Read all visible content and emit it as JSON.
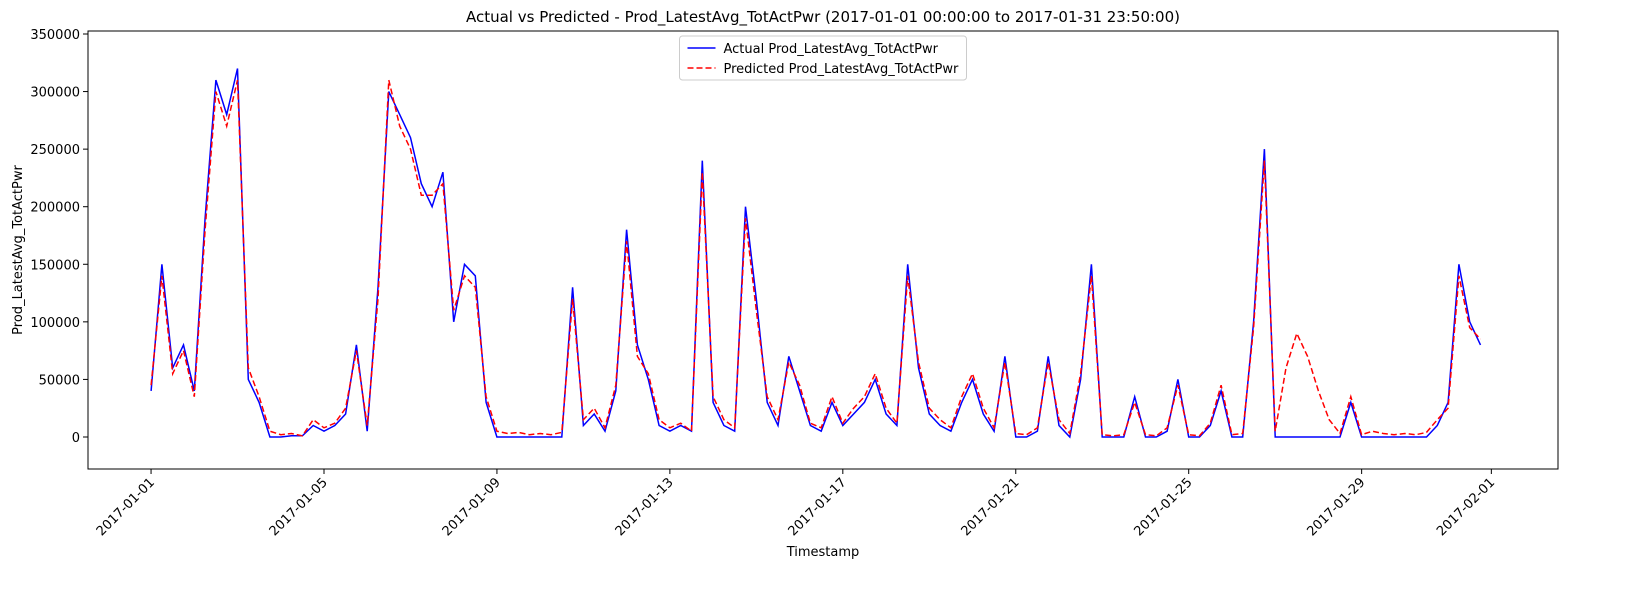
{
  "chart_data": {
    "type": "line",
    "title": "Actual vs Predicted - Prod_LatestAvg_TotActPwr (2017-01-01 00:00:00 to 2017-01-31 23:50:00)",
    "x_label": "Timestamp",
    "y_label": "Prod_LatestAvg_TotActPwr",
    "legend": "upper center",
    "xlim": [
      "2016-12-30 13:00:00",
      "2017-02-02 13:00:00"
    ],
    "xticks": [
      "2017-01-01",
      "2017-01-05",
      "2017-01-09",
      "2017-01-13",
      "2017-01-17",
      "2017-01-21",
      "2017-01-25",
      "2017-01-29",
      "2017-02-01"
    ],
    "ylim": [
      -27800,
      352600
    ],
    "yticks": [
      0,
      50000,
      100000,
      150000,
      200000,
      250000,
      300000,
      350000
    ],
    "x": [
      "2017-01-01 00:00:00",
      "2017-01-01 06:00:00",
      "2017-01-01 12:00:00",
      "2017-01-01 18:00:00",
      "2017-01-02 00:00:00",
      "2017-01-02 06:00:00",
      "2017-01-02 12:00:00",
      "2017-01-02 18:00:00",
      "2017-01-03 00:00:00",
      "2017-01-03 06:00:00",
      "2017-01-03 12:00:00",
      "2017-01-03 18:00:00",
      "2017-01-04 00:00:00",
      "2017-01-04 06:00:00",
      "2017-01-04 12:00:00",
      "2017-01-04 18:00:00",
      "2017-01-05 00:00:00",
      "2017-01-05 06:00:00",
      "2017-01-05 12:00:00",
      "2017-01-05 18:00:00",
      "2017-01-06 00:00:00",
      "2017-01-06 06:00:00",
      "2017-01-06 12:00:00",
      "2017-01-06 18:00:00",
      "2017-01-07 00:00:00",
      "2017-01-07 06:00:00",
      "2017-01-07 12:00:00",
      "2017-01-07 18:00:00",
      "2017-01-08 00:00:00",
      "2017-01-08 06:00:00",
      "2017-01-08 12:00:00",
      "2017-01-08 18:00:00",
      "2017-01-09 00:00:00",
      "2017-01-09 06:00:00",
      "2017-01-09 12:00:00",
      "2017-01-09 18:00:00",
      "2017-01-10 00:00:00",
      "2017-01-10 06:00:00",
      "2017-01-10 12:00:00",
      "2017-01-10 18:00:00",
      "2017-01-11 00:00:00",
      "2017-01-11 06:00:00",
      "2017-01-11 12:00:00",
      "2017-01-11 18:00:00",
      "2017-01-12 00:00:00",
      "2017-01-12 06:00:00",
      "2017-01-12 12:00:00",
      "2017-01-12 18:00:00",
      "2017-01-13 00:00:00",
      "2017-01-13 06:00:00",
      "2017-01-13 12:00:00",
      "2017-01-13 18:00:00",
      "2017-01-14 00:00:00",
      "2017-01-14 06:00:00",
      "2017-01-14 12:00:00",
      "2017-01-14 18:00:00",
      "2017-01-15 00:00:00",
      "2017-01-15 06:00:00",
      "2017-01-15 12:00:00",
      "2017-01-15 18:00:00",
      "2017-01-16 00:00:00",
      "2017-01-16 06:00:00",
      "2017-01-16 12:00:00",
      "2017-01-16 18:00:00",
      "2017-01-17 00:00:00",
      "2017-01-17 06:00:00",
      "2017-01-17 12:00:00",
      "2017-01-17 18:00:00",
      "2017-01-18 00:00:00",
      "2017-01-18 06:00:00",
      "2017-01-18 12:00:00",
      "2017-01-18 18:00:00",
      "2017-01-19 00:00:00",
      "2017-01-19 06:00:00",
      "2017-01-19 12:00:00",
      "2017-01-19 18:00:00",
      "2017-01-20 00:00:00",
      "2017-01-20 06:00:00",
      "2017-01-20 12:00:00",
      "2017-01-20 18:00:00",
      "2017-01-21 00:00:00",
      "2017-01-21 06:00:00",
      "2017-01-21 12:00:00",
      "2017-01-21 18:00:00",
      "2017-01-22 00:00:00",
      "2017-01-22 06:00:00",
      "2017-01-22 12:00:00",
      "2017-01-22 18:00:00",
      "2017-01-23 00:00:00",
      "2017-01-23 06:00:00",
      "2017-01-23 12:00:00",
      "2017-01-23 18:00:00",
      "2017-01-24 00:00:00",
      "2017-01-24 06:00:00",
      "2017-01-24 12:00:00",
      "2017-01-24 18:00:00",
      "2017-01-25 00:00:00",
      "2017-01-25 06:00:00",
      "2017-01-25 12:00:00",
      "2017-01-25 18:00:00",
      "2017-01-26 00:00:00",
      "2017-01-26 06:00:00",
      "2017-01-26 12:00:00",
      "2017-01-26 18:00:00",
      "2017-01-27 00:00:00",
      "2017-01-27 06:00:00",
      "2017-01-27 12:00:00",
      "2017-01-27 18:00:00",
      "2017-01-28 00:00:00",
      "2017-01-28 06:00:00",
      "2017-01-28 12:00:00",
      "2017-01-28 18:00:00",
      "2017-01-29 00:00:00",
      "2017-01-29 06:00:00",
      "2017-01-29 12:00:00",
      "2017-01-29 18:00:00",
      "2017-01-30 00:00:00",
      "2017-01-30 06:00:00",
      "2017-01-30 12:00:00",
      "2017-01-30 18:00:00",
      "2017-01-31 00:00:00",
      "2017-01-31 06:00:00",
      "2017-01-31 12:00:00",
      "2017-01-31 18:00:00"
    ],
    "series": [
      {
        "name": "Actual Prod_LatestAvg_TotActPwr",
        "color": "#0000ff",
        "dash": false,
        "values": [
          40000,
          150000,
          60000,
          80000,
          40000,
          190000,
          310000,
          280000,
          320000,
          50000,
          30000,
          0,
          0,
          1000,
          1000,
          10000,
          5000,
          10000,
          20000,
          80000,
          5000,
          130000,
          300000,
          280000,
          260000,
          220000,
          200000,
          230000,
          100000,
          150000,
          140000,
          30000,
          0,
          0,
          0,
          0,
          0,
          0,
          0,
          130000,
          10000,
          20000,
          5000,
          40000,
          180000,
          80000,
          50000,
          10000,
          5000,
          10000,
          5000,
          240000,
          30000,
          10000,
          5000,
          200000,
          120000,
          30000,
          10000,
          70000,
          40000,
          10000,
          5000,
          30000,
          10000,
          20000,
          30000,
          50000,
          20000,
          10000,
          150000,
          60000,
          20000,
          10000,
          5000,
          30000,
          50000,
          20000,
          5000,
          70000,
          0,
          0,
          5000,
          70000,
          10000,
          0,
          50000,
          150000,
          0,
          0,
          0,
          35000,
          0,
          0,
          5000,
          50000,
          0,
          0,
          10000,
          40000,
          0,
          0,
          100000,
          250000,
          0,
          0,
          0,
          0,
          0,
          0,
          0,
          30000,
          0,
          0,
          0,
          0,
          0,
          0,
          0,
          10000,
          30000,
          150000,
          100000,
          80000
        ]
      },
      {
        "name": "Predicted Prod_LatestAvg_TotActPwr",
        "color": "#ff0000",
        "dash": true,
        "values": [
          45000,
          140000,
          55000,
          75000,
          35000,
          180000,
          300000,
          270000,
          310000,
          60000,
          35000,
          5000,
          2000,
          3000,
          1000,
          15000,
          8000,
          12000,
          25000,
          75000,
          10000,
          120000,
          310000,
          270000,
          250000,
          210000,
          210000,
          220000,
          110000,
          140000,
          130000,
          35000,
          5000,
          3000,
          4000,
          2000,
          3000,
          2000,
          4000,
          120000,
          15000,
          25000,
          8000,
          45000,
          170000,
          70000,
          55000,
          15000,
          8000,
          12000,
          5000,
          230000,
          35000,
          15000,
          8000,
          190000,
          110000,
          35000,
          15000,
          65000,
          45000,
          12000,
          8000,
          35000,
          12000,
          25000,
          35000,
          55000,
          25000,
          12000,
          140000,
          65000,
          25000,
          15000,
          8000,
          35000,
          55000,
          25000,
          8000,
          65000,
          3000,
          2000,
          8000,
          65000,
          15000,
          3000,
          55000,
          140000,
          2000,
          1000,
          2000,
          30000,
          2000,
          1000,
          8000,
          45000,
          2000,
          1000,
          12000,
          45000,
          2000,
          3000,
          95000,
          240000,
          5000,
          60000,
          90000,
          70000,
          40000,
          15000,
          3000,
          35000,
          2000,
          5000,
          3000,
          2000,
          3000,
          2000,
          4000,
          15000,
          25000,
          140000,
          95000,
          85000
        ]
      }
    ]
  }
}
